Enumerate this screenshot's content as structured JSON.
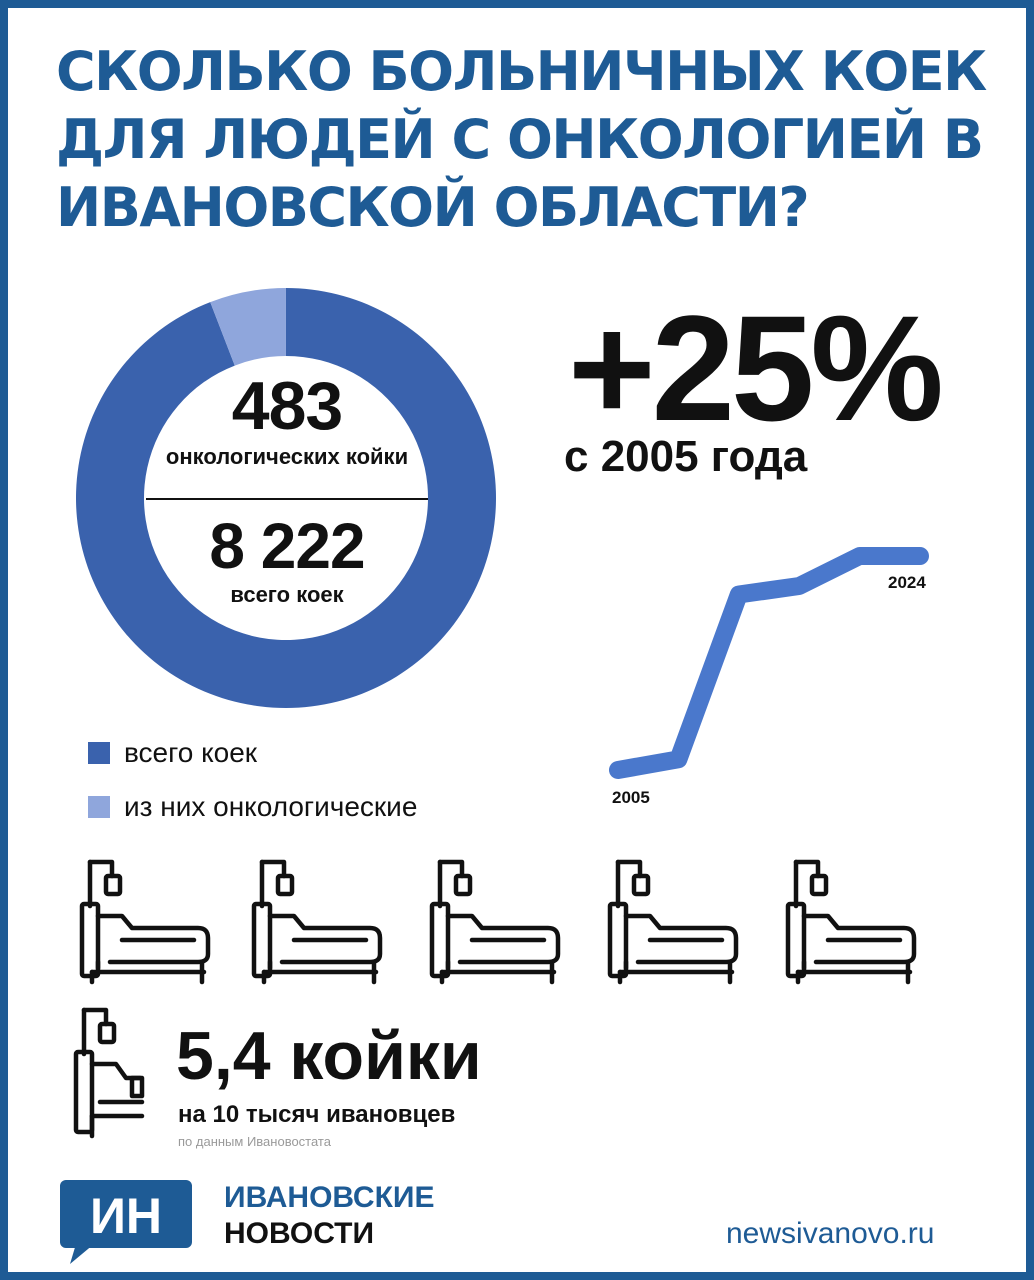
{
  "title": "СКОЛЬКО БОЛЬНИЧНЫХ КОЕК ДЛЯ ЛЮДЕЙ С ОНКОЛОГИЕЙ В ИВАНОВСКОЙ ОБЛАСТИ?",
  "colors": {
    "brand_blue": "#1e5b95",
    "total_series": "#3a62ad",
    "oncology_series": "#8fa6dc",
    "line_series": "#4a78cc",
    "text": "#111111"
  },
  "chart_data": [
    {
      "type": "pie",
      "style": "donut",
      "labels": [
        "всего коек",
        "из них онкологические"
      ],
      "values": [
        8222,
        483
      ],
      "colors": [
        "#3a62ad",
        "#8fa6dc"
      ],
      "center": {
        "oncology_value": "483",
        "oncology_label": "онкологических койки",
        "total_value": "8 222",
        "total_label": "всего коек"
      },
      "legend": {
        "position": "bottom-left",
        "entries": [
          "всего коек",
          "из них онкологические"
        ]
      }
    },
    {
      "type": "line",
      "x_labels": [
        "2005",
        "2024"
      ],
      "y_relative": [
        0,
        0.05,
        0.82,
        0.86,
        1.0,
        1.0
      ],
      "headline": "+25%",
      "caption": "с 2005 года",
      "grid": false
    }
  ],
  "per_capita": {
    "value": "5,4 койки",
    "caption": "на 10 тысяч ивановцев",
    "source": "по данным Ивановостата",
    "icon": "hospital-bed-icon"
  },
  "brand": {
    "logo_text": "ИН",
    "name_line1": "ИВАНОВСКИЕ",
    "name_line2": "НОВОСТИ",
    "website": "newsivanovo.ru"
  }
}
